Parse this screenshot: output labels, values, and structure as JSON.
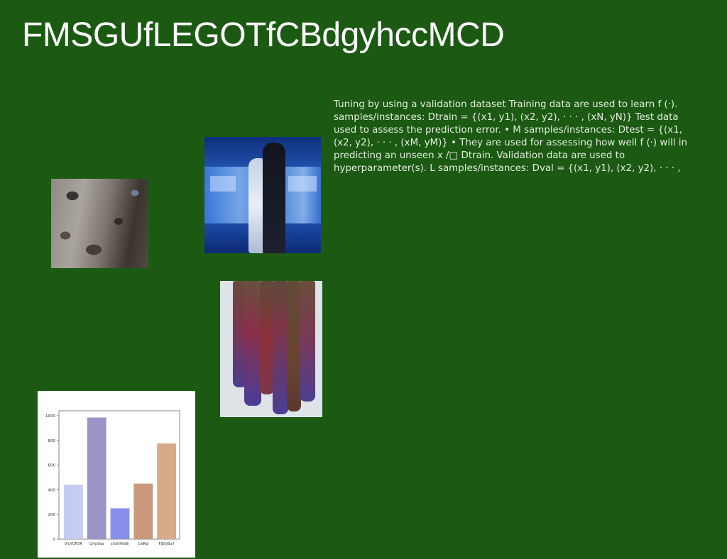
{
  "page": {
    "title": "FMSGUfLEGOTfCBdgyhccMCD",
    "body_text": "Tuning by using a validation dataset Training data are used to learn f (·). samples/instances: Dtrain = {(x1, y1), (x2, y2), · · · , (xN, yN)} Test data used to assess the prediction error. • M samples/instances: Dtest = {(x1, (x2, y2), · · · , (xM, yM)} • They are used for assessing how well f (·) will in predicting an unseen x /□ Dtrain. Validation data are used to hyperparameter(s). L samples/instances: Dval = {(x1, y1), (x2, y2), · · · ,",
    "background_color": "#1c5a13"
  },
  "images": {
    "rock": "rock-texture-photo",
    "train": "couple-in-front-of-train-photo",
    "bottles": "bottles-artwork-photo",
    "chart": "bar-chart-figure"
  },
  "chart_data": {
    "type": "bar",
    "categories": [
      "tFqYUFGR",
      "LVrpVaa",
      "sXaVHIeBr",
      "CwRal",
      "FjEhjBa f"
    ],
    "values": [
      440,
      985,
      250,
      450,
      775
    ],
    "colors": [
      "#c5cbf3",
      "#9b94c7",
      "#8790ec",
      "#c99a7b",
      "#d8a989"
    ],
    "y_ticks": [
      0,
      200,
      400,
      600,
      800,
      1000
    ],
    "ylim": [
      0,
      1040
    ],
    "title": "",
    "xlabel": "",
    "ylabel": ""
  }
}
